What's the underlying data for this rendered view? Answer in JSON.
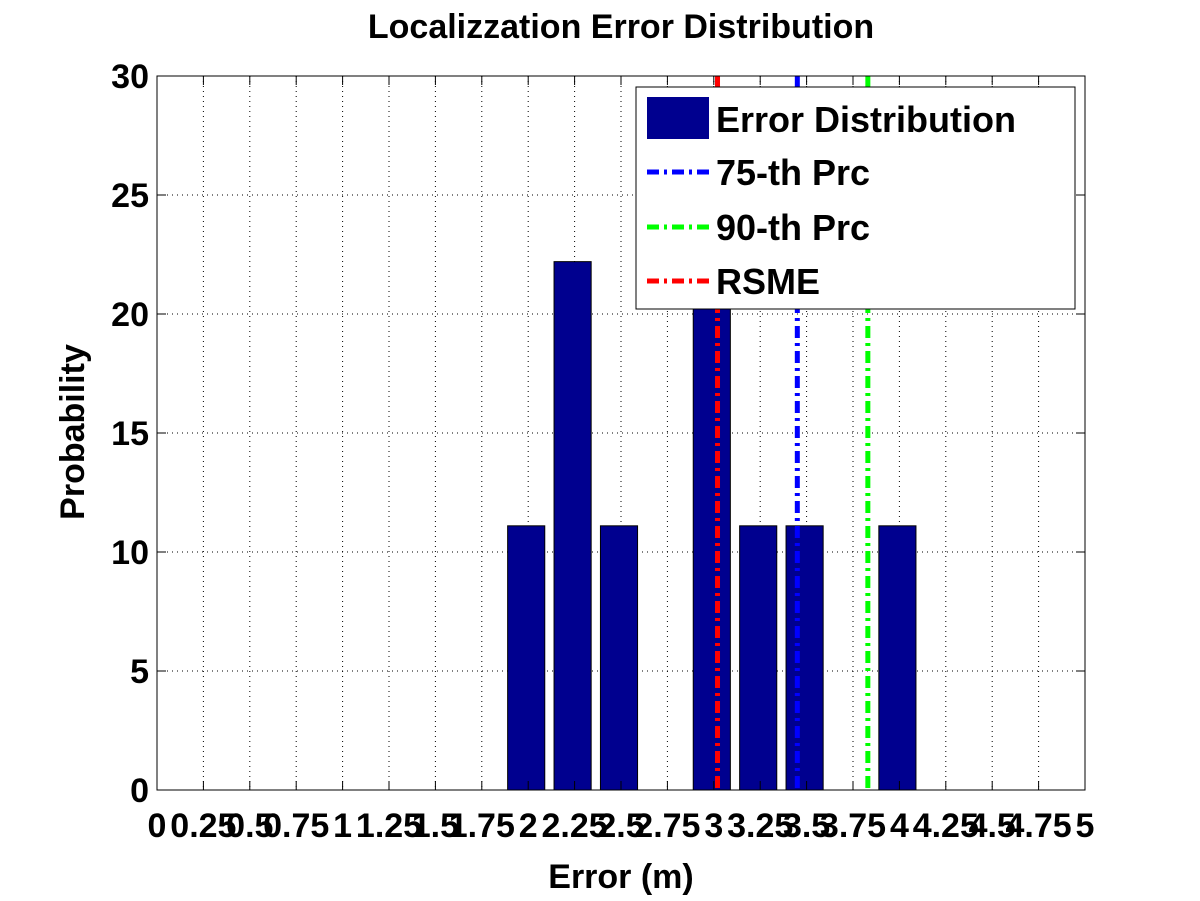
{
  "chart_data": {
    "type": "bar",
    "title": "Localizzation Error Distribution",
    "xlabel": "Error (m)",
    "ylabel": "Probability",
    "xlim": [
      0,
      5
    ],
    "ylim": [
      0,
      30
    ],
    "grid": true,
    "legend_placement": "top-right",
    "x_ticks": [
      0,
      0.25,
      0.5,
      0.75,
      1,
      1.25,
      1.5,
      1.75,
      2,
      2.25,
      2.5,
      2.75,
      3,
      3.25,
      3.5,
      3.75,
      4,
      4.25,
      4.5,
      4.75,
      5
    ],
    "x_tick_labels": [
      "0",
      "0.25",
      "0.5",
      "0.75",
      "1",
      "1.25",
      "1.5",
      "1.75",
      "2",
      "2.25",
      "2.5",
      "2.75",
      "3",
      "3.25",
      "3.5",
      "3.75",
      "4",
      "4.25",
      "4.5",
      "4.75",
      "5"
    ],
    "y_ticks": [
      0,
      5,
      10,
      15,
      20,
      25,
      30
    ],
    "y_tick_labels": [
      "0",
      "5",
      "10",
      "15",
      "20",
      "25",
      "30"
    ],
    "series": [
      {
        "name": "Error Distribution",
        "kind": "bar",
        "color": "#00008f",
        "x": [
          2,
          2.25,
          2.5,
          3,
          3.25,
          3.5,
          4
        ],
        "values": [
          11.1,
          22.2,
          11.1,
          22.2,
          11.1,
          11.1,
          11.1
        ]
      },
      {
        "name": "75-th Prc",
        "kind": "vline",
        "color": "#0000ff",
        "x": 3.45
      },
      {
        "name": "90-th Prc",
        "kind": "vline",
        "color": "#00ff00",
        "x": 3.83
      },
      {
        "name": "RSME",
        "kind": "vline",
        "color": "#ff0000",
        "x": 3.02
      }
    ]
  }
}
